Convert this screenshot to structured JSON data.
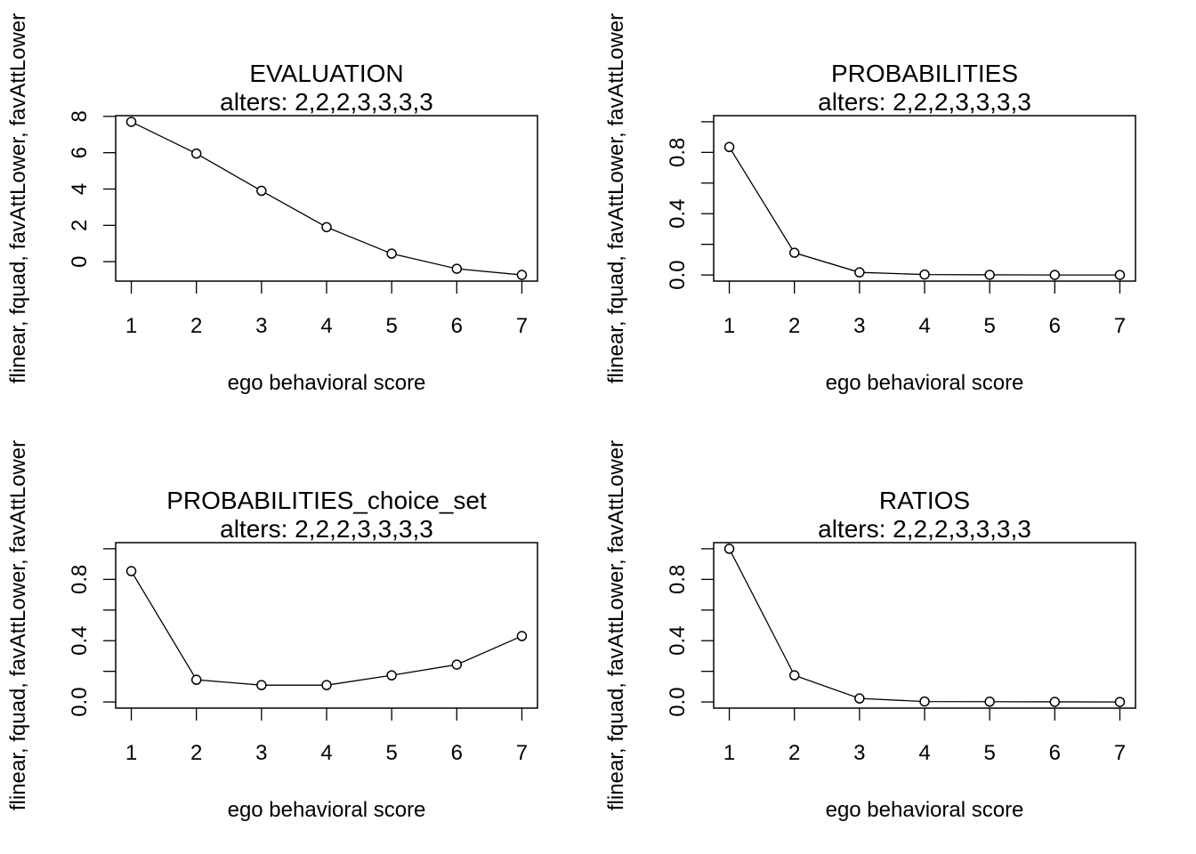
{
  "chart_data": [
    {
      "type": "line",
      "title": "EVALUATION",
      "subtitle": "alters: 2,2,2,3,3,3,3",
      "x_label": "ego behavioral score",
      "y_label": "flinear, fquad, favAttLower, favAttLower",
      "x": [
        1,
        2,
        3,
        4,
        5,
        6,
        7
      ],
      "values": [
        7.7,
        5.95,
        3.9,
        1.9,
        0.44,
        -0.39,
        -0.73
      ],
      "color": "#000000",
      "xlim": [
        0.76,
        7.24
      ],
      "xticks": [
        1,
        2,
        3,
        4,
        5,
        6,
        7
      ],
      "ylim": [
        -1.07,
        8.04
      ],
      "yticks": [
        0,
        2,
        4,
        6,
        8
      ],
      "minor_yticks": []
    },
    {
      "type": "line",
      "title": "PROBABILITIES",
      "subtitle": "alters: 2,2,2,3,3,3,3",
      "x_label": "ego behavioral score",
      "y_label": "flinear, fquad, favAttLower, favAttLower",
      "x": [
        1,
        2,
        3,
        4,
        5,
        6,
        7
      ],
      "values": [
        0.835,
        0.145,
        0.017,
        0.003,
        0.001,
        0,
        0
      ],
      "color": "#000000",
      "xlim": [
        0.76,
        7.24
      ],
      "xticks": [
        1,
        2,
        3,
        4,
        5,
        6,
        7
      ],
      "ylim": [
        -0.04,
        1.04
      ],
      "yticks": [
        {
          "value": 0,
          "label": "0.0"
        },
        0.4,
        0.8
      ],
      "minor_yticks": [
        0.2,
        0.6,
        1
      ]
    },
    {
      "type": "line",
      "title": "PROBABILITIES_choice_set",
      "subtitle": "alters: 2,2,2,3,3,3,3",
      "x_label": "ego behavioral score",
      "y_label": "flinear, fquad, favAttLower, favAttLower",
      "x": [
        1,
        2,
        3,
        4,
        5,
        6,
        7
      ],
      "values": [
        0.854,
        0.145,
        0.11,
        0.11,
        0.174,
        0.244,
        0.43
      ],
      "color": "#000000",
      "xlim": [
        0.76,
        7.24
      ],
      "xticks": [
        1,
        2,
        3,
        4,
        5,
        6,
        7
      ],
      "ylim": [
        -0.04,
        1.04
      ],
      "yticks": [
        {
          "value": 0,
          "label": "0.0"
        },
        0.4,
        0.8
      ],
      "minor_yticks": [
        0.2,
        0.6,
        1
      ]
    },
    {
      "type": "line",
      "title": "RATIOS",
      "subtitle": "alters: 2,2,2,3,3,3,3",
      "x_label": "ego behavioral score",
      "y_label": "flinear, fquad, favAttLower, favAttLower",
      "x": [
        1,
        2,
        3,
        4,
        5,
        6,
        7
      ],
      "values": [
        1,
        0.174,
        0.023,
        0.003,
        0.002,
        0.001,
        0
      ],
      "color": "#000000",
      "xlim": [
        0.76,
        7.24
      ],
      "xticks": [
        1,
        2,
        3,
        4,
        5,
        6,
        7
      ],
      "ylim": [
        -0.04,
        1.04
      ],
      "yticks": [
        {
          "value": 0,
          "label": "0.0"
        },
        0.4,
        0.8
      ],
      "minor_yticks": [
        0.2,
        0.6,
        1
      ]
    }
  ]
}
